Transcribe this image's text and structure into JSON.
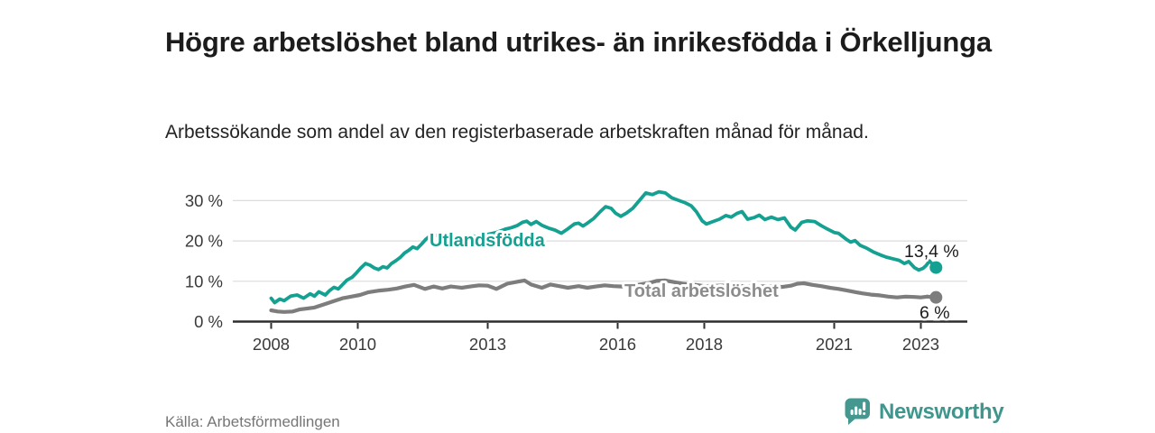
{
  "colors": {
    "teal": "#14A191",
    "gray": "#7d7d7d",
    "gray_label": "#8c8c8c",
    "dark_text": "#1c1c1c",
    "tick_text": "#3a3a3a",
    "grid": "#dcdcdc",
    "axis": "#2e2e2e",
    "logo_teal": "#44988F",
    "source_text": "#767676"
  },
  "chart_data": {
    "type": "line",
    "title": "Högre arbetslöshet bland utrikes- än inrikesfödda i Örkelljunga",
    "subtitle": "Arbetssökande som andel av den registerbaserade arbetskraften månad för månad.",
    "source": "Källa: Arbetsförmedlingen",
    "brand": "Newsworthy",
    "grid": "on",
    "x_axis": {
      "range": [
        2007.1,
        2024.1
      ],
      "ticks": [
        {
          "v": 2008,
          "label": "2008"
        },
        {
          "v": 2010,
          "label": "2010"
        },
        {
          "v": 2013,
          "label": "2013"
        },
        {
          "v": 2016,
          "label": "2016"
        },
        {
          "v": 2018,
          "label": "2018"
        },
        {
          "v": 2021,
          "label": "2021"
        },
        {
          "v": 2023,
          "label": "2023"
        }
      ]
    },
    "y_axis": {
      "range": [
        0,
        33
      ],
      "unit": "%",
      "ticks": [
        {
          "v": 0,
          "label": "0 %"
        },
        {
          "v": 10,
          "label": "10 %"
        },
        {
          "v": 20,
          "label": "20 %"
        },
        {
          "v": 30,
          "label": "30 %"
        }
      ]
    },
    "series": [
      {
        "name": "Utlandsfödda",
        "color_key": "teal",
        "label_color_key": "teal",
        "end_label": "13,4 %",
        "end_value": 13.4,
        "tail_dashed": true,
        "end_point": [
          2023.35,
          13.4
        ],
        "points": [
          [
            2008.0,
            5.8
          ],
          [
            2008.08,
            4.7
          ],
          [
            2008.2,
            5.6
          ],
          [
            2008.3,
            5.2
          ],
          [
            2008.45,
            6.3
          ],
          [
            2008.6,
            6.6
          ],
          [
            2008.75,
            5.8
          ],
          [
            2008.9,
            6.9
          ],
          [
            2009.0,
            6.3
          ],
          [
            2009.1,
            7.4
          ],
          [
            2009.25,
            6.6
          ],
          [
            2009.35,
            7.7
          ],
          [
            2009.45,
            8.5
          ],
          [
            2009.55,
            8.1
          ],
          [
            2009.65,
            9.2
          ],
          [
            2009.75,
            10.3
          ],
          [
            2009.87,
            11.0
          ],
          [
            2009.97,
            12.1
          ],
          [
            2010.07,
            13.3
          ],
          [
            2010.18,
            14.4
          ],
          [
            2010.28,
            14.0
          ],
          [
            2010.38,
            13.3
          ],
          [
            2010.48,
            12.9
          ],
          [
            2010.58,
            13.6
          ],
          [
            2010.68,
            13.3
          ],
          [
            2010.78,
            14.4
          ],
          [
            2010.88,
            15.1
          ],
          [
            2010.98,
            15.9
          ],
          [
            2011.08,
            17.0
          ],
          [
            2011.18,
            17.7
          ],
          [
            2011.27,
            18.5
          ],
          [
            2011.37,
            18.1
          ],
          [
            2011.47,
            19.2
          ],
          [
            2011.57,
            20.4
          ],
          [
            2011.65,
            21.1
          ],
          [
            2011.8,
            21.4
          ],
          [
            2012.0,
            20.6
          ],
          [
            2012.2,
            20.2
          ],
          [
            2012.4,
            20.8
          ],
          [
            2012.6,
            21.3
          ],
          [
            2012.8,
            21.0
          ],
          [
            2013.0,
            21.6
          ],
          [
            2013.2,
            22.1
          ],
          [
            2013.4,
            22.9
          ],
          [
            2013.55,
            23.3
          ],
          [
            2013.68,
            23.8
          ],
          [
            2013.8,
            24.6
          ],
          [
            2013.9,
            24.9
          ],
          [
            2014.0,
            24.1
          ],
          [
            2014.12,
            24.8
          ],
          [
            2014.25,
            23.9
          ],
          [
            2014.4,
            23.2
          ],
          [
            2014.55,
            22.7
          ],
          [
            2014.7,
            21.9
          ],
          [
            2014.85,
            23.0
          ],
          [
            2015.0,
            24.2
          ],
          [
            2015.1,
            24.4
          ],
          [
            2015.2,
            23.7
          ],
          [
            2015.3,
            24.4
          ],
          [
            2015.45,
            25.6
          ],
          [
            2015.6,
            27.3
          ],
          [
            2015.72,
            28.5
          ],
          [
            2015.85,
            28.1
          ],
          [
            2015.95,
            26.9
          ],
          [
            2016.07,
            26.1
          ],
          [
            2016.2,
            26.9
          ],
          [
            2016.35,
            28.1
          ],
          [
            2016.5,
            30.0
          ],
          [
            2016.65,
            31.9
          ],
          [
            2016.8,
            31.5
          ],
          [
            2016.95,
            32.2
          ],
          [
            2017.1,
            31.9
          ],
          [
            2017.25,
            30.7
          ],
          [
            2017.4,
            30.1
          ],
          [
            2017.55,
            29.5
          ],
          [
            2017.7,
            28.7
          ],
          [
            2017.82,
            27.2
          ],
          [
            2017.95,
            25.0
          ],
          [
            2018.05,
            24.2
          ],
          [
            2018.2,
            24.8
          ],
          [
            2018.35,
            25.4
          ],
          [
            2018.5,
            26.3
          ],
          [
            2018.62,
            25.9
          ],
          [
            2018.75,
            26.8
          ],
          [
            2018.87,
            27.3
          ],
          [
            2019.0,
            25.4
          ],
          [
            2019.15,
            25.8
          ],
          [
            2019.27,
            26.4
          ],
          [
            2019.4,
            25.3
          ],
          [
            2019.55,
            25.9
          ],
          [
            2019.7,
            25.3
          ],
          [
            2019.85,
            25.7
          ],
          [
            2020.0,
            23.4
          ],
          [
            2020.1,
            22.7
          ],
          [
            2020.25,
            24.6
          ],
          [
            2020.38,
            25.0
          ],
          [
            2020.55,
            24.8
          ],
          [
            2020.7,
            23.8
          ],
          [
            2020.85,
            22.9
          ],
          [
            2021.0,
            22.1
          ],
          [
            2021.1,
            21.9
          ],
          [
            2021.28,
            20.4
          ],
          [
            2021.38,
            19.7
          ],
          [
            2021.48,
            20.1
          ],
          [
            2021.6,
            18.9
          ],
          [
            2021.75,
            18.2
          ],
          [
            2021.9,
            17.3
          ],
          [
            2022.05,
            16.6
          ],
          [
            2022.2,
            16.0
          ],
          [
            2022.35,
            15.6
          ],
          [
            2022.5,
            15.2
          ],
          [
            2022.62,
            14.4
          ],
          [
            2022.72,
            14.9
          ],
          [
            2022.85,
            13.4
          ],
          [
            2022.95,
            12.8
          ],
          [
            2023.05,
            13.2
          ],
          [
            2023.12,
            13.9
          ],
          [
            2023.2,
            15.0
          ]
        ]
      },
      {
        "name": "Total arbetslöshet",
        "color_key": "gray",
        "label_color_key": "gray_label",
        "end_label": "6 %",
        "end_value": 6.0,
        "tail_dashed": false,
        "end_point": [
          2023.35,
          6.0
        ],
        "points": [
          [
            2008.0,
            2.8
          ],
          [
            2008.15,
            2.5
          ],
          [
            2008.3,
            2.4
          ],
          [
            2008.5,
            2.5
          ],
          [
            2008.65,
            3.0
          ],
          [
            2008.8,
            3.2
          ],
          [
            2009.0,
            3.5
          ],
          [
            2009.2,
            4.2
          ],
          [
            2009.45,
            5.1
          ],
          [
            2009.65,
            5.8
          ],
          [
            2009.85,
            6.2
          ],
          [
            2010.05,
            6.6
          ],
          [
            2010.25,
            7.3
          ],
          [
            2010.5,
            7.7
          ],
          [
            2010.7,
            7.9
          ],
          [
            2010.9,
            8.2
          ],
          [
            2011.1,
            8.7
          ],
          [
            2011.3,
            9.1
          ],
          [
            2011.55,
            8.1
          ],
          [
            2011.75,
            8.7
          ],
          [
            2011.95,
            8.2
          ],
          [
            2012.15,
            8.7
          ],
          [
            2012.4,
            8.4
          ],
          [
            2012.6,
            8.7
          ],
          [
            2012.8,
            9.0
          ],
          [
            2013.0,
            8.9
          ],
          [
            2013.2,
            8.1
          ],
          [
            2013.45,
            9.4
          ],
          [
            2013.7,
            9.9
          ],
          [
            2013.85,
            10.2
          ],
          [
            2014.0,
            9.2
          ],
          [
            2014.25,
            8.4
          ],
          [
            2014.45,
            9.2
          ],
          [
            2014.65,
            8.8
          ],
          [
            2014.85,
            8.4
          ],
          [
            2015.1,
            8.8
          ],
          [
            2015.3,
            8.4
          ],
          [
            2015.5,
            8.7
          ],
          [
            2015.7,
            9.0
          ],
          [
            2015.9,
            8.8
          ],
          [
            2016.1,
            8.7
          ],
          [
            2016.4,
            9.0
          ],
          [
            2016.7,
            9.5
          ],
          [
            2016.9,
            10.1
          ],
          [
            2017.1,
            10.2
          ],
          [
            2017.3,
            9.8
          ],
          [
            2017.5,
            9.4
          ],
          [
            2017.8,
            9.1
          ],
          [
            2018.0,
            8.8
          ],
          [
            2018.3,
            8.9
          ],
          [
            2018.6,
            9.0
          ],
          [
            2018.9,
            8.8
          ],
          [
            2019.2,
            8.7
          ],
          [
            2019.5,
            8.8
          ],
          [
            2019.8,
            8.6
          ],
          [
            2020.0,
            8.9
          ],
          [
            2020.15,
            9.4
          ],
          [
            2020.3,
            9.5
          ],
          [
            2020.5,
            9.1
          ],
          [
            2020.7,
            8.8
          ],
          [
            2020.9,
            8.4
          ],
          [
            2021.1,
            8.1
          ],
          [
            2021.3,
            7.7
          ],
          [
            2021.5,
            7.3
          ],
          [
            2021.65,
            7.0
          ],
          [
            2021.85,
            6.7
          ],
          [
            2022.05,
            6.5
          ],
          [
            2022.25,
            6.2
          ],
          [
            2022.45,
            6.0
          ],
          [
            2022.65,
            6.2
          ],
          [
            2022.85,
            6.1
          ],
          [
            2023.0,
            6.0
          ],
          [
            2023.15,
            6.2
          ]
        ]
      }
    ]
  }
}
